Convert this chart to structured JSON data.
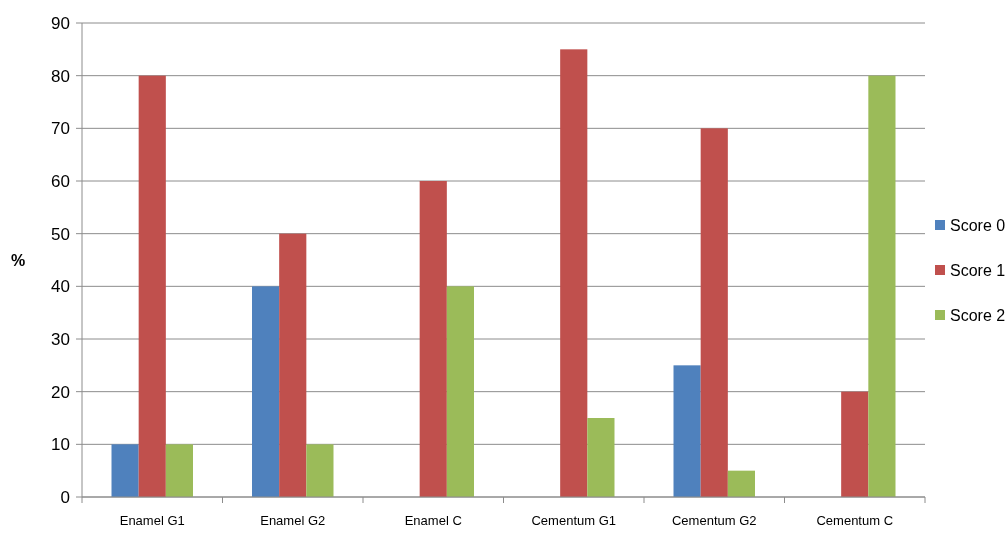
{
  "chart_data": {
    "type": "bar",
    "ylabel": "%",
    "categories": [
      "Enamel G1",
      "Enamel G2",
      "Enamel C",
      "Cementum G1",
      "Cementum G2",
      "Cementum C"
    ],
    "series": [
      {
        "name": "Score 0",
        "color": "#4f81bd",
        "values": [
          10,
          40,
          0,
          0,
          25,
          0
        ]
      },
      {
        "name": "Score 1",
        "color": "#c0504d",
        "values": [
          80,
          50,
          60,
          85,
          70,
          20
        ]
      },
      {
        "name": "Score 2",
        "color": "#9bbb59",
        "values": [
          10,
          10,
          40,
          15,
          5,
          80
        ]
      }
    ],
    "ylim": [
      0,
      90
    ],
    "yticks": [
      0,
      10,
      20,
      30,
      40,
      50,
      60,
      70,
      80,
      90
    ],
    "grid": "y",
    "legend": "right"
  }
}
